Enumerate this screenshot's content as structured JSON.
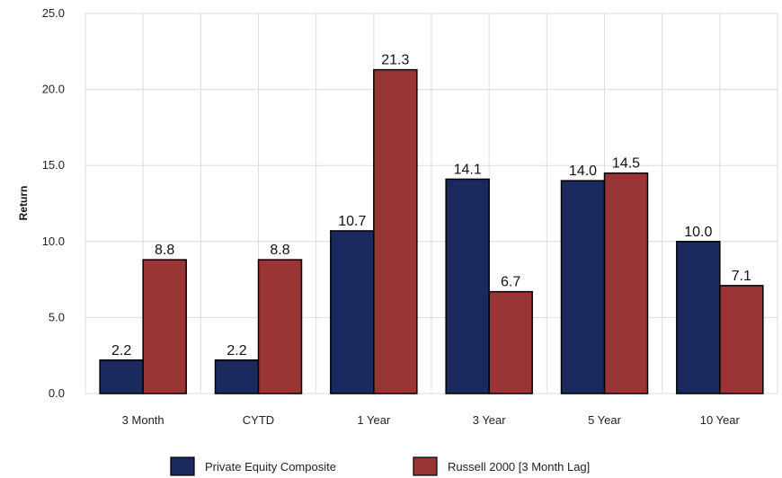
{
  "chart_data": {
    "type": "bar",
    "title": "",
    "xlabel": "",
    "ylabel": "Return",
    "ylim": [
      0,
      25
    ],
    "yticks": [
      "0.0",
      "5.0",
      "10.0",
      "15.0",
      "20.0",
      "25.0"
    ],
    "grid": true,
    "legend_position": "bottom",
    "categories": [
      "3 Month",
      "CYTD",
      "1 Year",
      "3 Year",
      "5 Year",
      "10 Year"
    ],
    "series": [
      {
        "name": "Private Equity Composite",
        "color": "#1b2a5e",
        "values": [
          2.2,
          2.2,
          10.7,
          14.1,
          14.0,
          10.0
        ],
        "labels": [
          "2.2",
          "2.2",
          "10.7",
          "14.1",
          "14.0",
          "10.0"
        ]
      },
      {
        "name": "Russell 2000 [3 Month Lag]",
        "color": "#993535",
        "values": [
          8.8,
          8.8,
          21.3,
          6.7,
          14.5,
          7.1
        ],
        "labels": [
          "8.8",
          "8.8",
          "21.3",
          "6.7",
          "14.5",
          "7.1"
        ]
      }
    ]
  }
}
